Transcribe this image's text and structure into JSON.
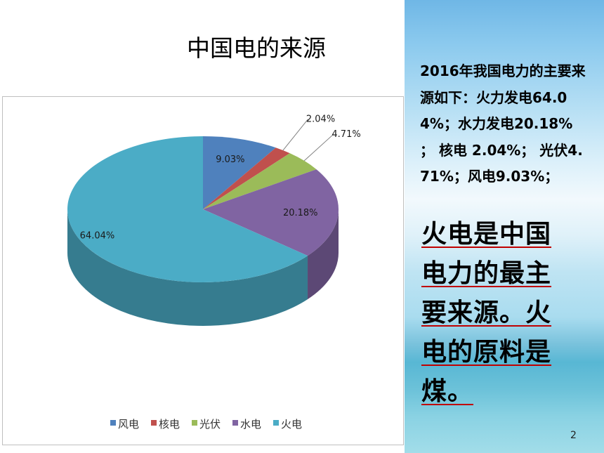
{
  "slide": {
    "title": "中国电的来源",
    "description": "2016年我国电力的主要来源如下：火力发电64.04%；水力发电20.18% ；  核电 2.04%；  光伏4.71%；风电9.03%；",
    "conclusion": "火电是中国电力的最主要来源。火电的原料是煤。",
    "page_number": "2"
  },
  "chart_data": {
    "type": "pie",
    "title": "",
    "series": [
      {
        "name": "风电",
        "value": 9.03,
        "label": "9.03%",
        "color": "#4f81bd"
      },
      {
        "name": "核电",
        "value": 2.04,
        "label": "2.04%",
        "color": "#c0504d"
      },
      {
        "name": "光伏",
        "value": 4.71,
        "label": "4.71%",
        "color": "#9bbb59"
      },
      {
        "name": "水电",
        "value": 20.18,
        "label": "20.18%",
        "color": "#8064a2"
      },
      {
        "name": "火电",
        "value": 64.04,
        "label": "64.04%",
        "color": "#4bacc6"
      }
    ],
    "legend_position": "bottom",
    "style": "3d"
  }
}
